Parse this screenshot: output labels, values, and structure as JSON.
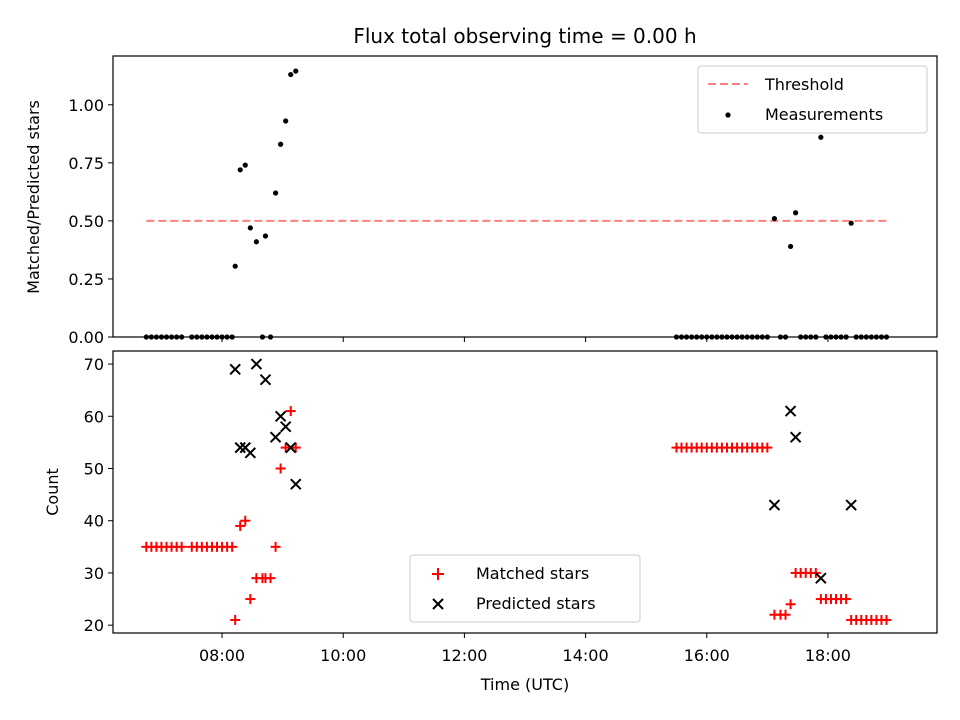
{
  "figure_title": "Flux total observing time = 0.00 h",
  "colors": {
    "measurement": "#000000",
    "threshold": "#ff8080",
    "matched": "#ff0000",
    "predicted": "#000000"
  },
  "chart_data": [
    {
      "type": "scatter",
      "title": "Flux total observing time = 0.00 h",
      "xlabel": "",
      "ylabel": "Matched/Predicted stars",
      "xlim": [
        "06:12",
        "19:48"
      ],
      "ylim": [
        0,
        1.21
      ],
      "ytick_labels": [
        "0.00",
        "0.25",
        "0.50",
        "0.75",
        "1.00"
      ],
      "grid": false,
      "legend_position": "upper right",
      "threshold": {
        "name": "Threshold",
        "value": 0.5,
        "x_range": [
          "06:45",
          "19:00"
        ],
        "style": "dashed"
      },
      "series": [
        {
          "name": "Measurements",
          "marker": "dot",
          "points": [
            [
              "06:45",
              0
            ],
            [
              "06:50",
              0
            ],
            [
              "06:55",
              0
            ],
            [
              "07:00",
              0
            ],
            [
              "07:05",
              0
            ],
            [
              "07:10",
              0
            ],
            [
              "07:15",
              0
            ],
            [
              "07:20",
              0
            ],
            [
              "07:30",
              0
            ],
            [
              "07:35",
              0
            ],
            [
              "07:40",
              0
            ],
            [
              "07:45",
              0
            ],
            [
              "07:50",
              0
            ],
            [
              "07:55",
              0
            ],
            [
              "08:00",
              0
            ],
            [
              "08:05",
              0
            ],
            [
              "08:10",
              0
            ],
            [
              "08:13",
              0.305
            ],
            [
              "08:18",
              0.72
            ],
            [
              "08:23",
              0.74
            ],
            [
              "08:28",
              0.47
            ],
            [
              "08:34",
              0.41
            ],
            [
              "08:40",
              0
            ],
            [
              "08:43",
              0.435
            ],
            [
              "08:48",
              0
            ],
            [
              "08:53",
              0.62
            ],
            [
              "08:58",
              0.83
            ],
            [
              "09:03",
              0.93
            ],
            [
              "09:08",
              1.13
            ],
            [
              "09:13",
              1.145
            ],
            [
              "15:30",
              0
            ],
            [
              "15:35",
              0
            ],
            [
              "15:40",
              0
            ],
            [
              "15:45",
              0
            ],
            [
              "15:50",
              0
            ],
            [
              "15:55",
              0
            ],
            [
              "16:00",
              0
            ],
            [
              "16:05",
              0
            ],
            [
              "16:10",
              0
            ],
            [
              "16:15",
              0
            ],
            [
              "16:20",
              0
            ],
            [
              "16:25",
              0
            ],
            [
              "16:30",
              0
            ],
            [
              "16:35",
              0
            ],
            [
              "16:40",
              0
            ],
            [
              "16:45",
              0
            ],
            [
              "16:50",
              0
            ],
            [
              "16:55",
              0
            ],
            [
              "17:00",
              0
            ],
            [
              "17:07",
              0.51
            ],
            [
              "17:13",
              0
            ],
            [
              "17:18",
              0
            ],
            [
              "17:23",
              0.39
            ],
            [
              "17:28",
              0.535
            ],
            [
              "17:33",
              0
            ],
            [
              "17:38",
              0
            ],
            [
              "17:43",
              0
            ],
            [
              "17:48",
              0
            ],
            [
              "17:53",
              0.86
            ],
            [
              "17:58",
              0
            ],
            [
              "18:03",
              0
            ],
            [
              "18:08",
              0
            ],
            [
              "18:13",
              0
            ],
            [
              "18:18",
              0
            ],
            [
              "18:23",
              0.49
            ],
            [
              "18:28",
              0
            ],
            [
              "18:33",
              0
            ],
            [
              "18:38",
              0
            ],
            [
              "18:43",
              0
            ],
            [
              "18:48",
              0
            ],
            [
              "18:53",
              0
            ],
            [
              "18:58",
              0
            ]
          ]
        }
      ]
    },
    {
      "type": "scatter",
      "title": "",
      "xlabel": "Time (UTC)",
      "ylabel": "Count",
      "xlim": [
        "06:12",
        "19:48"
      ],
      "ylim": [
        18.5,
        72.5
      ],
      "xtick_labels": [
        "08:00",
        "10:00",
        "12:00",
        "14:00",
        "16:00",
        "18:00"
      ],
      "ytick_labels": [
        "20",
        "30",
        "40",
        "50",
        "60",
        "70"
      ],
      "grid": false,
      "legend_position": "lower center",
      "series": [
        {
          "name": "Matched stars",
          "marker": "plus",
          "points": [
            [
              "06:45",
              35
            ],
            [
              "06:50",
              35
            ],
            [
              "06:55",
              35
            ],
            [
              "07:00",
              35
            ],
            [
              "07:05",
              35
            ],
            [
              "07:10",
              35
            ],
            [
              "07:15",
              35
            ],
            [
              "07:20",
              35
            ],
            [
              "07:30",
              35
            ],
            [
              "07:35",
              35
            ],
            [
              "07:40",
              35
            ],
            [
              "07:45",
              35
            ],
            [
              "07:50",
              35
            ],
            [
              "07:55",
              35
            ],
            [
              "08:00",
              35
            ],
            [
              "08:05",
              35
            ],
            [
              "08:10",
              35
            ],
            [
              "08:13",
              21
            ],
            [
              "08:18",
              39
            ],
            [
              "08:23",
              40
            ],
            [
              "08:28",
              25
            ],
            [
              "08:34",
              29
            ],
            [
              "08:40",
              29
            ],
            [
              "08:43",
              29
            ],
            [
              "08:48",
              29
            ],
            [
              "08:53",
              35
            ],
            [
              "08:58",
              50
            ],
            [
              "09:03",
              54
            ],
            [
              "09:08",
              61
            ],
            [
              "09:13",
              54
            ],
            [
              "15:30",
              54
            ],
            [
              "15:35",
              54
            ],
            [
              "15:40",
              54
            ],
            [
              "15:45",
              54
            ],
            [
              "15:50",
              54
            ],
            [
              "15:55",
              54
            ],
            [
              "16:00",
              54
            ],
            [
              "16:05",
              54
            ],
            [
              "16:10",
              54
            ],
            [
              "16:15",
              54
            ],
            [
              "16:20",
              54
            ],
            [
              "16:25",
              54
            ],
            [
              "16:30",
              54
            ],
            [
              "16:35",
              54
            ],
            [
              "16:40",
              54
            ],
            [
              "16:45",
              54
            ],
            [
              "16:50",
              54
            ],
            [
              "16:55",
              54
            ],
            [
              "17:00",
              54
            ],
            [
              "17:07",
              22
            ],
            [
              "17:13",
              22
            ],
            [
              "17:18",
              22
            ],
            [
              "17:23",
              24
            ],
            [
              "17:28",
              30
            ],
            [
              "17:33",
              30
            ],
            [
              "17:38",
              30
            ],
            [
              "17:43",
              30
            ],
            [
              "17:48",
              30
            ],
            [
              "17:53",
              25
            ],
            [
              "17:58",
              25
            ],
            [
              "18:03",
              25
            ],
            [
              "18:08",
              25
            ],
            [
              "18:13",
              25
            ],
            [
              "18:18",
              25
            ],
            [
              "18:23",
              21
            ],
            [
              "18:28",
              21
            ],
            [
              "18:33",
              21
            ],
            [
              "18:38",
              21
            ],
            [
              "18:43",
              21
            ],
            [
              "18:48",
              21
            ],
            [
              "18:53",
              21
            ],
            [
              "18:58",
              21
            ]
          ]
        },
        {
          "name": "Predicted stars",
          "marker": "x",
          "points": [
            [
              "08:13",
              69
            ],
            [
              "08:18",
              54
            ],
            [
              "08:23",
              54
            ],
            [
              "08:28",
              53
            ],
            [
              "08:34",
              70
            ],
            [
              "08:43",
              67
            ],
            [
              "08:53",
              56
            ],
            [
              "08:58",
              60
            ],
            [
              "09:03",
              58
            ],
            [
              "09:08",
              54
            ],
            [
              "09:13",
              47
            ],
            [
              "17:07",
              43
            ],
            [
              "17:23",
              61
            ],
            [
              "17:28",
              56
            ],
            [
              "17:53",
              29
            ],
            [
              "18:23",
              43
            ]
          ]
        }
      ]
    }
  ]
}
